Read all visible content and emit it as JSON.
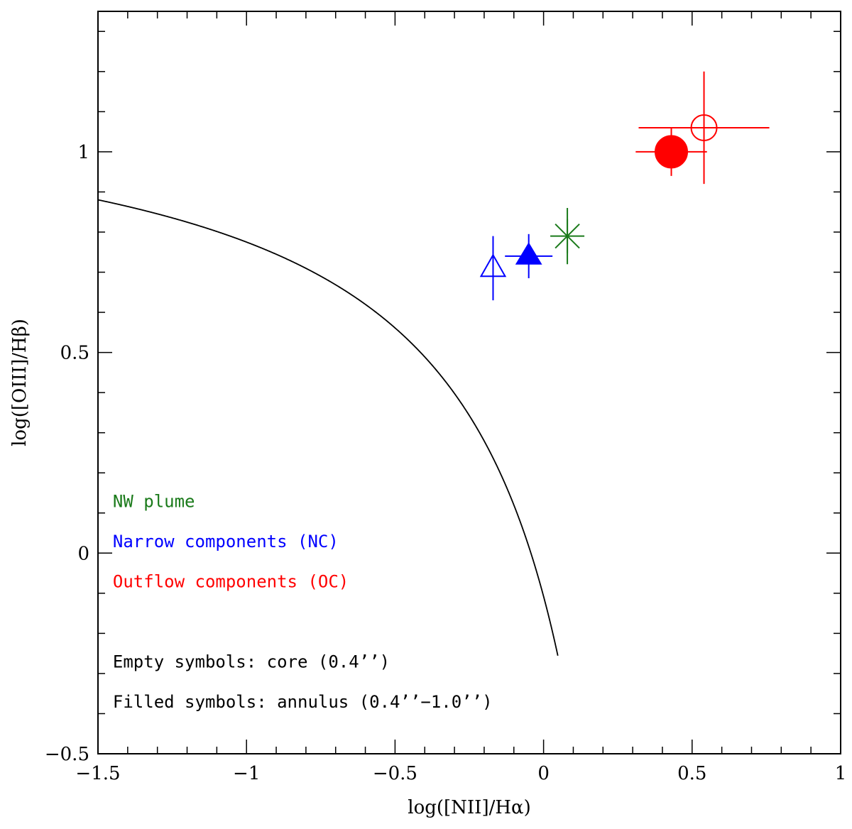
{
  "chart_data": {
    "type": "scatter",
    "xlabel": "log([NII]/Hα)",
    "ylabel": "log([OIII]/Hβ)",
    "xlim": [
      -1.5,
      1.0
    ],
    "ylim": [
      -0.5,
      1.35
    ],
    "x_ticks": [
      {
        "value": -1.5,
        "label": "−1.5"
      },
      {
        "value": -1.0,
        "label": "−1"
      },
      {
        "value": -0.5,
        "label": "−0.5"
      },
      {
        "value": 0.0,
        "label": "0"
      },
      {
        "value": 0.5,
        "label": "0.5"
      },
      {
        "value": 1.0,
        "label": "1"
      }
    ],
    "y_ticks": [
      {
        "value": -0.5,
        "label": "−0.5"
      },
      {
        "value": 0.0,
        "label": "0"
      },
      {
        "value": 0.5,
        "label": "0.5"
      },
      {
        "value": 1.0,
        "label": "1"
      }
    ],
    "x_minor_step": 0.1,
    "y_minor_step": 0.1,
    "curve": {
      "name": "demarcation curve",
      "formula": "y = 0.61/(x - 0.47) + 1.19",
      "color": "#000000"
    },
    "series": [
      {
        "name": "NW plume",
        "color": "#1a7a1a",
        "points": [
          {
            "x": 0.08,
            "y": 0.79,
            "xerr": 0.0,
            "yerr": 0.07,
            "symbol": "asterisk"
          }
        ]
      },
      {
        "name": "Narrow components (NC)",
        "color": "#0000ff",
        "points": [
          {
            "x": -0.17,
            "y": 0.71,
            "xerr": 0.0,
            "yerr": 0.08,
            "symbol": "triangle-open"
          },
          {
            "x": -0.05,
            "y": 0.74,
            "xerr": 0.08,
            "yerr": 0.055,
            "symbol": "triangle-filled"
          }
        ]
      },
      {
        "name": "Outflow components (OC)",
        "color": "#ff0000",
        "points": [
          {
            "x": 0.54,
            "y": 1.06,
            "xerr": 0.22,
            "yerr": 0.14,
            "symbol": "circle-open"
          },
          {
            "x": 0.43,
            "y": 1.0,
            "xerr": 0.12,
            "yerr": 0.06,
            "symbol": "circle-filled"
          }
        ]
      }
    ],
    "annotations": [
      {
        "text": "NW plume",
        "color": "#1a7a1a",
        "x": -1.45,
        "y": 0.115
      },
      {
        "text": "Narrow components (NC)",
        "color": "#0000ff",
        "x": -1.45,
        "y": 0.015
      },
      {
        "text": "Outflow components (OC)",
        "color": "#ff0000",
        "x": -1.45,
        "y": -0.085
      },
      {
        "text": "Empty symbols: core (0.4’’)",
        "color": "#000000",
        "x": -1.45,
        "y": -0.285
      },
      {
        "text": "Filled symbols: annulus (0.4’’−1.0’’)",
        "color": "#000000",
        "x": -1.45,
        "y": -0.385
      }
    ]
  }
}
